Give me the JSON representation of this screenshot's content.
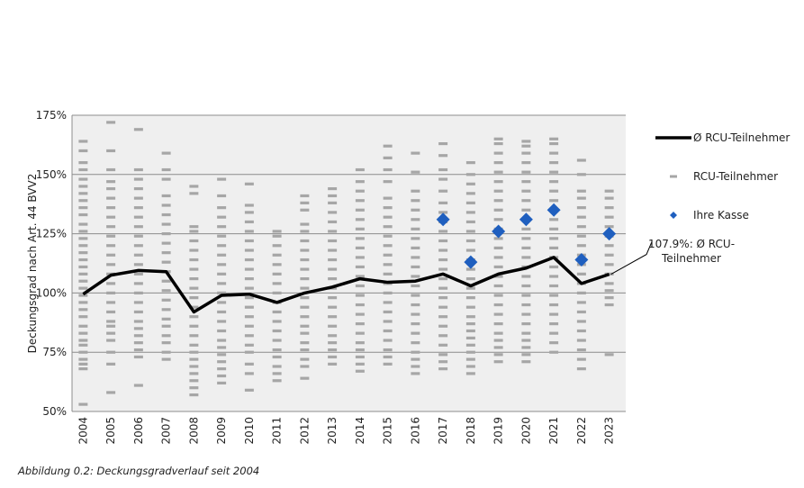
{
  "caption": "Abbildung 0.2: Deckungsgradverlauf seit 2004",
  "chart_data": {
    "type": "line",
    "title": "",
    "xlabel": "",
    "ylabel": "Deckungsgrad nach Art. 44 BVV2",
    "ylim": [
      50,
      175
    ],
    "yticks": [
      "50%",
      "75%",
      "100%",
      "125%",
      "150%",
      "175%"
    ],
    "ytick_values": [
      50,
      75,
      100,
      125,
      150,
      175
    ],
    "grid": true,
    "legend_position": "right",
    "categories": [
      "2004",
      "2005",
      "2006",
      "2007",
      "2008",
      "2009",
      "2010",
      "2011",
      "2012",
      "2013",
      "2014",
      "2015",
      "2016",
      "2017",
      "2018",
      "2019",
      "2020",
      "2021",
      "2022",
      "2023"
    ],
    "series": [
      {
        "name": "Ø RCU-Teilnehmer",
        "kind": "line",
        "color": "#000000",
        "values": [
          99.5,
          107.5,
          109.5,
          109.0,
          92.0,
          99.0,
          99.5,
          96.0,
          100.0,
          102.5,
          106.0,
          104.5,
          105.0,
          108.0,
          103.0,
          108.0,
          110.5,
          115.0,
          104.0,
          107.9
        ]
      },
      {
        "name": "RCU-Teilnehmer",
        "kind": "dash-distribution",
        "color": "#a6a6a6",
        "values": [
          [
            53,
            68,
            70,
            72,
            75,
            78,
            80,
            83,
            86,
            90,
            93,
            96,
            99,
            102,
            105,
            108,
            111,
            114,
            117,
            120,
            123,
            126,
            129,
            133,
            136,
            139,
            142,
            145,
            148,
            152,
            155,
            160,
            164
          ],
          [
            58,
            70,
            75,
            80,
            83,
            86,
            88,
            92,
            96,
            100,
            104,
            108,
            112,
            116,
            120,
            124,
            128,
            132,
            136,
            140,
            144,
            147,
            152,
            160,
            172
          ],
          [
            61,
            73,
            76,
            79,
            82,
            85,
            88,
            92,
            96,
            100,
            104,
            108,
            112,
            116,
            120,
            124,
            128,
            132,
            136,
            140,
            144,
            148,
            152,
            169
          ],
          [
            72,
            75,
            79,
            82,
            86,
            89,
            93,
            97,
            101,
            105,
            109,
            113,
            117,
            121,
            125,
            129,
            133,
            137,
            141,
            148,
            152,
            159
          ],
          [
            57,
            60,
            63,
            66,
            69,
            72,
            75,
            78,
            82,
            86,
            90,
            94,
            98,
            102,
            106,
            110,
            114,
            118,
            122,
            126,
            128,
            142,
            145
          ],
          [
            62,
            65,
            68,
            71,
            74,
            77,
            80,
            84,
            88,
            92,
            96,
            100,
            104,
            108,
            112,
            116,
            120,
            124,
            128,
            132,
            136,
            141,
            148
          ],
          [
            59,
            66,
            70,
            75,
            78,
            82,
            86,
            90,
            94,
            98,
            102,
            106,
            110,
            114,
            118,
            122,
            126,
            130,
            134,
            137,
            146
          ],
          [
            63,
            66,
            69,
            73,
            76,
            80,
            84,
            88,
            92,
            96,
            100,
            104,
            108,
            112,
            116,
            120,
            124,
            126
          ],
          [
            64,
            69,
            72,
            76,
            79,
            83,
            86,
            90,
            94,
            98,
            102,
            106,
            110,
            114,
            118,
            122,
            126,
            129,
            135,
            138,
            141
          ],
          [
            70,
            73,
            76,
            79,
            82,
            86,
            90,
            94,
            98,
            102,
            106,
            110,
            114,
            118,
            122,
            126,
            130,
            134,
            138,
            141,
            144
          ],
          [
            67,
            70,
            73,
            76,
            79,
            83,
            87,
            91,
            95,
            99,
            103,
            107,
            111,
            115,
            119,
            123,
            127,
            131,
            135,
            139,
            143,
            147,
            152
          ],
          [
            70,
            73,
            76,
            80,
            84,
            88,
            92,
            96,
            100,
            104,
            108,
            112,
            116,
            120,
            124,
            128,
            132,
            136,
            140,
            147,
            152,
            157,
            162
          ],
          [
            66,
            69,
            72,
            75,
            79,
            83,
            87,
            91,
            95,
            99,
            103,
            107,
            111,
            115,
            119,
            123,
            127,
            131,
            135,
            139,
            143,
            151,
            159
          ],
          [
            68,
            71,
            74,
            78,
            82,
            86,
            90,
            94,
            98,
            102,
            106,
            110,
            114,
            118,
            122,
            126,
            130,
            134,
            138,
            143,
            148,
            152,
            158,
            163
          ],
          [
            66,
            69,
            72,
            75,
            78,
            81,
            84,
            87,
            90,
            94,
            98,
            102,
            106,
            110,
            114,
            118,
            122,
            126,
            130,
            134,
            138,
            142,
            146,
            150,
            155
          ],
          [
            71,
            74,
            77,
            80,
            83,
            87,
            91,
            95,
            99,
            103,
            107,
            111,
            115,
            119,
            123,
            127,
            131,
            135,
            139,
            143,
            147,
            151,
            155,
            159,
            163,
            165
          ],
          [
            71,
            74,
            77,
            80,
            83,
            87,
            91,
            95,
            99,
            103,
            107,
            111,
            115,
            119,
            123,
            127,
            131,
            135,
            139,
            143,
            147,
            151,
            155,
            159,
            162,
            164
          ],
          [
            75,
            79,
            83,
            87,
            91,
            95,
            99,
            103,
            107,
            111,
            115,
            119,
            123,
            127,
            131,
            135,
            139,
            143,
            147,
            151,
            155,
            159,
            163,
            165
          ],
          [
            68,
            72,
            76,
            80,
            84,
            88,
            92,
            96,
            100,
            104,
            108,
            112,
            116,
            120,
            124,
            128,
            132,
            136,
            140,
            143,
            150,
            156
          ],
          [
            74,
            95,
            98,
            101,
            104,
            108,
            112,
            116,
            120,
            124,
            128,
            132,
            136,
            140,
            143
          ]
        ]
      },
      {
        "name": "Ihre Kasse",
        "kind": "scatter",
        "color": "#1f5fbf",
        "points": [
          {
            "x": "2017",
            "y": 131
          },
          {
            "x": "2018",
            "y": 113
          },
          {
            "x": "2019",
            "y": 126
          },
          {
            "x": "2020",
            "y": 131
          },
          {
            "x": "2021",
            "y": 135
          },
          {
            "x": "2022",
            "y": 114
          },
          {
            "x": "2023",
            "y": 125
          }
        ]
      }
    ],
    "annotation": {
      "lines": [
        "107.9%: Ø RCU-",
        "Teilnehmer"
      ],
      "target_x": "2023",
      "target_y": 107.9
    },
    "legend": [
      {
        "label": "Ø RCU-Teilnehmer",
        "kind": "line"
      },
      {
        "label": "RCU-Teilnehmer",
        "kind": "dash"
      },
      {
        "label": "Ihre Kasse",
        "kind": "diamond"
      }
    ]
  }
}
